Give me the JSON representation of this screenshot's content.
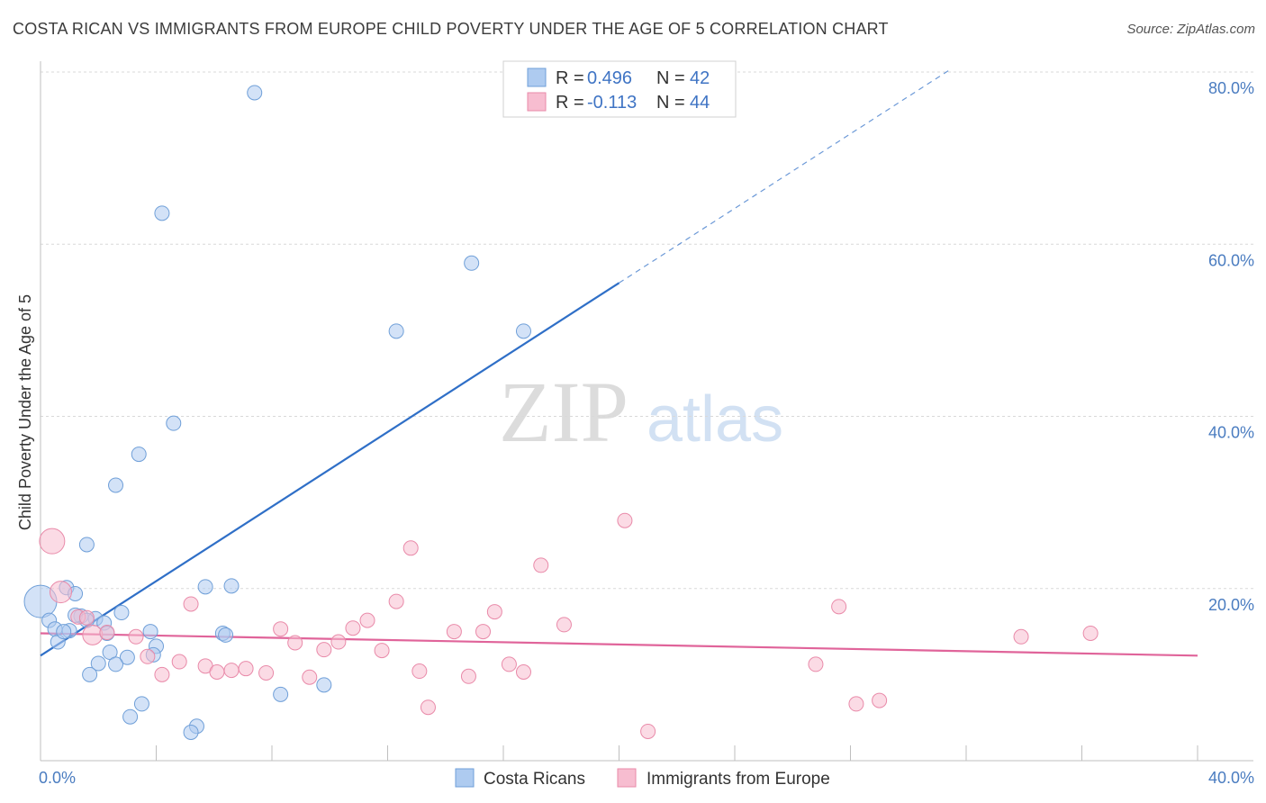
{
  "title": "COSTA RICAN VS IMMIGRANTS FROM EUROPE CHILD POVERTY UNDER THE AGE OF 5 CORRELATION CHART",
  "source": "Source: ZipAtlas.com",
  "watermark": {
    "zip": "ZIP",
    "atlas": "atlas"
  },
  "colors": {
    "blue_fill": "#aecbf0",
    "blue_stroke": "#6f9fd8",
    "blue_line": "#2f6fc7",
    "pink_fill": "#f7bdd0",
    "pink_stroke": "#e98aa9",
    "pink_line": "#e0649a",
    "axis_label": "#4a7cc0",
    "grid": "#d9d9d9"
  },
  "legend": {
    "r_label": "R =",
    "n_label": "N =",
    "rows": [
      {
        "r": "0.496",
        "n": "42",
        "series": "blue"
      },
      {
        "r": "-0.113",
        "n": "44",
        "series": "pink"
      }
    ]
  },
  "chart_data": {
    "type": "scatter",
    "title": "COSTA RICAN VS IMMIGRANTS FROM EUROPE CHILD POVERTY UNDER THE AGE OF 5 CORRELATION CHART",
    "xlabel": "",
    "ylabel": "Child Poverty Under the Age of 5",
    "xlim": [
      0,
      40
    ],
    "ylim": [
      0,
      80
    ],
    "x_tick_labels": [
      "0.0%",
      "40.0%"
    ],
    "y_ticks": [
      20,
      40,
      60,
      80
    ],
    "y_tick_labels": [
      "20.0%",
      "40.0%",
      "60.0%",
      "80.0%"
    ],
    "grid": true,
    "legend_position": "top-center",
    "series": [
      {
        "name": "Costa Ricans",
        "color": "blue",
        "trend": {
          "x0": 0,
          "y0": 12.2,
          "x1": 20,
          "y1": 55.5,
          "dashed_to_x": 31.5,
          "dashed_to_y": 80.4
        },
        "points": [
          [
            7.4,
            77.6
          ],
          [
            4.2,
            63.6
          ],
          [
            14.9,
            57.8
          ],
          [
            12.3,
            49.9
          ],
          [
            16.7,
            49.9
          ],
          [
            4.6,
            39.2
          ],
          [
            3.4,
            35.6
          ],
          [
            2.6,
            32.0
          ],
          [
            1.6,
            25.1
          ],
          [
            5.7,
            20.2
          ],
          [
            6.6,
            20.3
          ],
          [
            0.0,
            18.5
          ],
          [
            0.9,
            20.1
          ],
          [
            1.2,
            19.4
          ],
          [
            0.3,
            16.3
          ],
          [
            1.4,
            16.8
          ],
          [
            1.9,
            16.5
          ],
          [
            2.2,
            16.0
          ],
          [
            2.8,
            17.2
          ],
          [
            0.5,
            15.3
          ],
          [
            1.0,
            15.1
          ],
          [
            2.3,
            14.8
          ],
          [
            3.8,
            15.0
          ],
          [
            6.3,
            14.8
          ],
          [
            6.4,
            14.6
          ],
          [
            0.6,
            13.8
          ],
          [
            4.0,
            13.3
          ],
          [
            2.4,
            12.6
          ],
          [
            3.0,
            12.0
          ],
          [
            3.9,
            12.3
          ],
          [
            2.0,
            11.3
          ],
          [
            2.6,
            11.2
          ],
          [
            1.7,
            10.0
          ],
          [
            8.3,
            7.7
          ],
          [
            9.8,
            8.8
          ],
          [
            3.5,
            6.6
          ],
          [
            3.1,
            5.1
          ],
          [
            5.4,
            4.0
          ],
          [
            5.2,
            3.3
          ],
          [
            1.2,
            16.9
          ],
          [
            0.8,
            15.0
          ],
          [
            1.6,
            16.3
          ]
        ]
      },
      {
        "name": "Immigrants from Europe",
        "color": "pink",
        "trend": {
          "x0": 0,
          "y0": 14.8,
          "x1": 40,
          "y1": 12.2
        },
        "points": [
          [
            0.4,
            25.5
          ],
          [
            0.7,
            19.6
          ],
          [
            1.3,
            16.7
          ],
          [
            1.8,
            14.6
          ],
          [
            2.3,
            14.9
          ],
          [
            3.3,
            14.4
          ],
          [
            3.7,
            12.1
          ],
          [
            4.2,
            10.0
          ],
          [
            4.8,
            11.5
          ],
          [
            5.2,
            18.2
          ],
          [
            5.7,
            11.0
          ],
          [
            6.1,
            10.3
          ],
          [
            6.6,
            10.5
          ],
          [
            7.1,
            10.7
          ],
          [
            7.8,
            10.2
          ],
          [
            8.3,
            15.3
          ],
          [
            8.8,
            13.7
          ],
          [
            9.3,
            9.7
          ],
          [
            9.8,
            12.9
          ],
          [
            10.3,
            13.8
          ],
          [
            10.8,
            15.4
          ],
          [
            11.3,
            16.3
          ],
          [
            11.8,
            12.8
          ],
          [
            12.3,
            18.5
          ],
          [
            12.8,
            24.7
          ],
          [
            13.1,
            10.4
          ],
          [
            13.4,
            6.2
          ],
          [
            14.3,
            15.0
          ],
          [
            14.8,
            9.8
          ],
          [
            15.3,
            15.0
          ],
          [
            15.7,
            17.3
          ],
          [
            16.2,
            11.2
          ],
          [
            16.7,
            10.3
          ],
          [
            17.3,
            22.7
          ],
          [
            18.1,
            15.8
          ],
          [
            20.2,
            27.9
          ],
          [
            21.0,
            3.4
          ],
          [
            26.8,
            11.2
          ],
          [
            27.6,
            17.9
          ],
          [
            28.2,
            6.6
          ],
          [
            29.0,
            7.0
          ],
          [
            33.9,
            14.4
          ],
          [
            36.3,
            14.8
          ],
          [
            1.6,
            16.6
          ]
        ]
      }
    ]
  },
  "bottom_legend": [
    "Costa Ricans",
    "Immigrants from Europe"
  ]
}
